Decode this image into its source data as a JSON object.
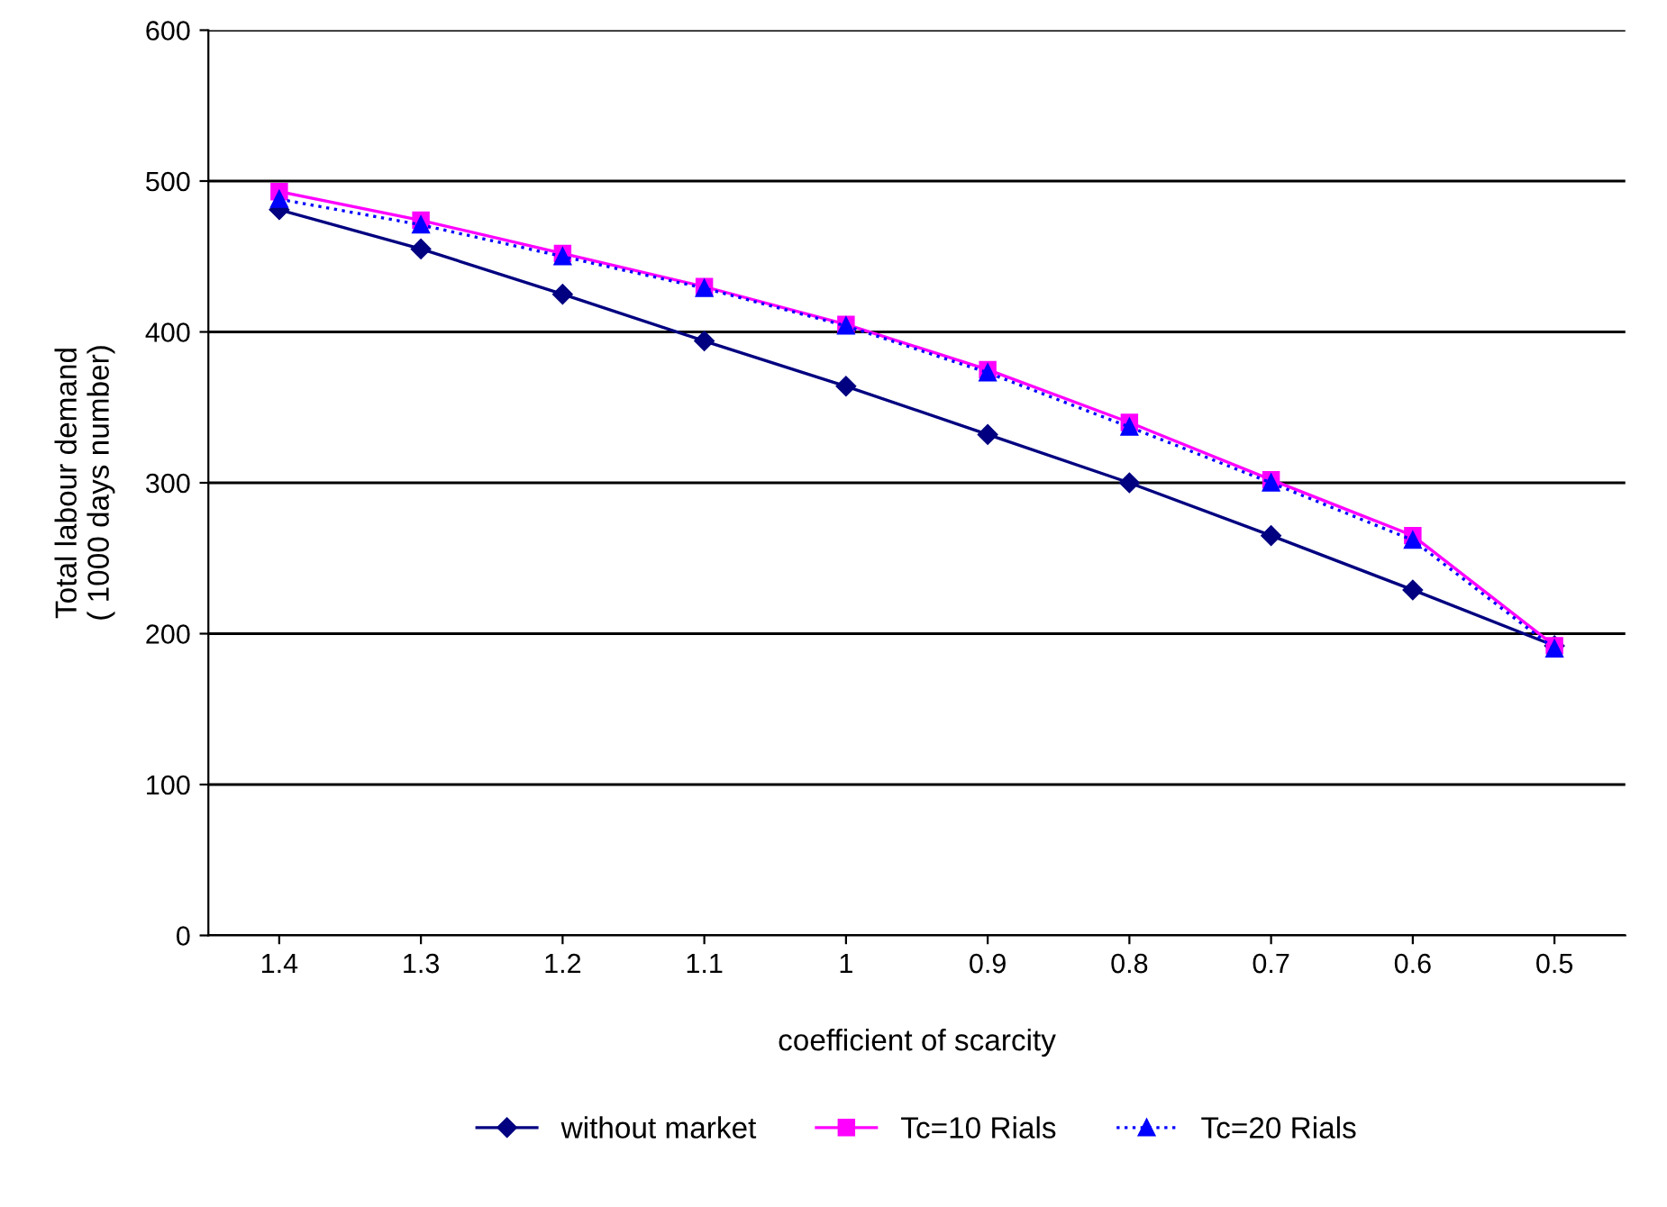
{
  "chart_data": {
    "type": "line",
    "xlabel": "coefficient of scarcity",
    "ylabel": "Total labour demand\n( 1000 days number)",
    "categories": [
      "1.4",
      "1.3",
      "1.2",
      "1.1",
      "1",
      "0.9",
      "0.8",
      "0.7",
      "0.6",
      "0.5"
    ],
    "series": [
      {
        "name": "without market",
        "color": "#000080",
        "marker": "diamond",
        "line_style": "solid",
        "values": [
          481,
          455,
          425,
          394,
          364,
          332,
          300,
          265,
          229,
          192
        ]
      },
      {
        "name": "Tc=10 Rials",
        "color": "#ff00ff",
        "marker": "square",
        "line_style": "solid",
        "values": [
          493,
          474,
          452,
          430,
          405,
          375,
          340,
          302,
          265,
          192
        ]
      },
      {
        "name": "Tc=20 Rials",
        "color": "#0000ff",
        "marker": "triangle",
        "line_style": "dotted",
        "values": [
          488,
          471,
          450,
          429,
          404,
          373,
          337,
          300,
          262,
          190
        ]
      }
    ],
    "ylim": [
      0,
      600
    ],
    "yticks": [
      0,
      100,
      200,
      300,
      400,
      500,
      600
    ],
    "grid": "y",
    "legend": "bottom"
  }
}
